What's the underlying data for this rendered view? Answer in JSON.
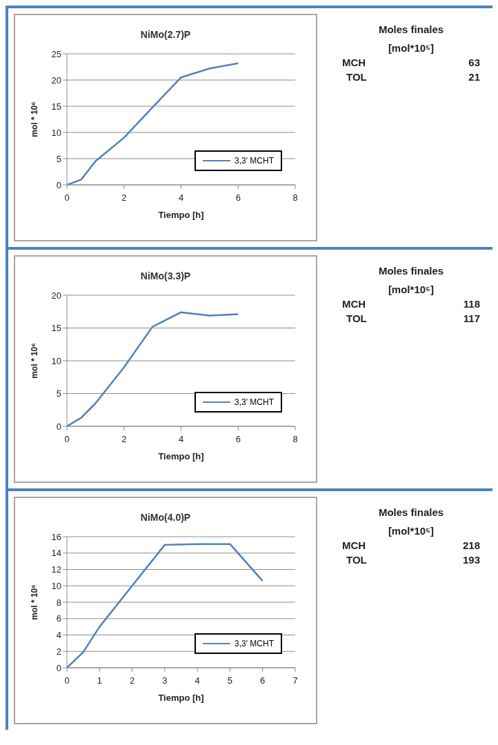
{
  "chart_data": [
    {
      "type": "line",
      "title": "NiMo(2.7)P",
      "xlabel": "Tiempo [h]",
      "ylabel": "mol * 10⁶",
      "x": [
        0,
        0.5,
        1,
        2,
        3,
        4,
        5,
        6
      ],
      "series": [
        {
          "name": "3,3' MCHT",
          "color": "#4f81bd",
          "values": [
            0,
            1,
            4.5,
            9,
            14.8,
            20.5,
            22.2,
            23.2
          ]
        }
      ],
      "xlim": [
        0,
        8
      ],
      "xticks": [
        0,
        2,
        4,
        6,
        8
      ],
      "ylim": [
        0,
        25
      ],
      "yticks": [
        0,
        5,
        10,
        15,
        20,
        25
      ],
      "grid": "y",
      "legend": "right",
      "marker": "none",
      "line_style": "solid"
    },
    {
      "type": "other",
      "title": "Moles finales",
      "subtitle": "[mol*10⁵]",
      "categories": [
        "MCH",
        "TOL"
      ],
      "values": [
        63,
        21
      ],
      "data_labels": true
    },
    {
      "type": "line",
      "title": "NiMo(3.3)P",
      "xlabel": "Tiempo [h]",
      "ylabel": "mol * 10⁶",
      "x": [
        0,
        0.5,
        1,
        2,
        3,
        4,
        5,
        6
      ],
      "series": [
        {
          "name": "3,3' MCHT",
          "color": "#4f81bd",
          "values": [
            0,
            1.3,
            3.5,
            9,
            15.2,
            17.4,
            16.9,
            17.1
          ]
        }
      ],
      "xlim": [
        0,
        8
      ],
      "xticks": [
        0,
        2,
        4,
        6,
        8
      ],
      "ylim": [
        0,
        20
      ],
      "yticks": [
        0,
        5,
        10,
        15,
        20
      ],
      "grid": "y",
      "legend": "right",
      "marker": "none",
      "line_style": "solid"
    },
    {
      "type": "other",
      "title": "Moles finales",
      "subtitle": "[mol*10⁵]",
      "categories": [
        "MCH",
        "TOL"
      ],
      "values": [
        118,
        117
      ],
      "data_labels": true
    },
    {
      "type": "line",
      "title": "NiMo(4.0)P",
      "xlabel": "Tiempo [h]",
      "ylabel": "mol * 10⁶",
      "x": [
        0,
        0.5,
        1,
        2,
        3,
        4,
        5,
        6
      ],
      "series": [
        {
          "name": "3,3' MCHT",
          "color": "#4f81bd",
          "values": [
            0,
            1.9,
            5,
            10,
            15,
            15.1,
            15.1,
            10.6
          ]
        }
      ],
      "xlim": [
        0,
        7
      ],
      "xticks": [
        0,
        1,
        2,
        3,
        4,
        5,
        6,
        7
      ],
      "ylim": [
        0,
        16
      ],
      "yticks": [
        0,
        2,
        4,
        6,
        8,
        10,
        12,
        14,
        16
      ],
      "grid": "y",
      "legend": "right",
      "marker": "none",
      "line_style": "solid"
    },
    {
      "type": "other",
      "title": "Moles finales",
      "subtitle": "[mol*10⁵]",
      "categories": [
        "MCH",
        "TOL"
      ],
      "values": [
        218,
        193
      ],
      "data_labels": true
    }
  ]
}
